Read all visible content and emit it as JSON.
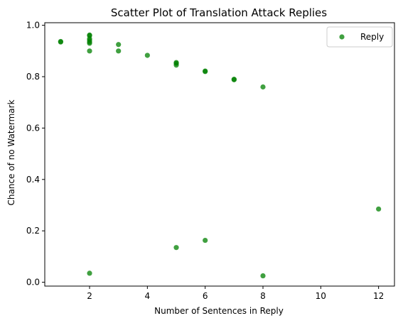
{
  "chart_data": {
    "type": "scatter",
    "title": "Scatter Plot of Translation Attack Replies",
    "xlabel": "Number of Sentences in Reply",
    "ylabel": "Chance of no Watermark",
    "xlim": [
      0.45,
      12.55
    ],
    "ylim": [
      -0.015,
      1.01
    ],
    "xticks": [
      2,
      4,
      6,
      8,
      10,
      12
    ],
    "yticks": [
      0.0,
      0.2,
      0.4,
      0.6,
      0.8,
      1.0
    ],
    "grid": false,
    "legend": {
      "position": "top-right",
      "entries": [
        "Reply"
      ]
    },
    "series": [
      {
        "name": "Reply",
        "color": "#008000",
        "points": [
          {
            "x": 1,
            "y": 0.935
          },
          {
            "x": 1,
            "y": 0.937
          },
          {
            "x": 2,
            "y": 0.962
          },
          {
            "x": 2,
            "y": 0.96
          },
          {
            "x": 2,
            "y": 0.948
          },
          {
            "x": 2,
            "y": 0.942
          },
          {
            "x": 2,
            "y": 0.935
          },
          {
            "x": 2,
            "y": 0.93
          },
          {
            "x": 2,
            "y": 0.9
          },
          {
            "x": 2,
            "y": 0.035
          },
          {
            "x": 3,
            "y": 0.925
          },
          {
            "x": 3,
            "y": 0.9
          },
          {
            "x": 4,
            "y": 0.883
          },
          {
            "x": 5,
            "y": 0.855
          },
          {
            "x": 5,
            "y": 0.852
          },
          {
            "x": 5,
            "y": 0.845
          },
          {
            "x": 5,
            "y": 0.135
          },
          {
            "x": 6,
            "y": 0.822
          },
          {
            "x": 6,
            "y": 0.82
          },
          {
            "x": 6,
            "y": 0.163
          },
          {
            "x": 7,
            "y": 0.79
          },
          {
            "x": 7,
            "y": 0.788
          },
          {
            "x": 8,
            "y": 0.76
          },
          {
            "x": 8,
            "y": 0.025
          },
          {
            "x": 12,
            "y": 0.285
          }
        ]
      }
    ]
  }
}
